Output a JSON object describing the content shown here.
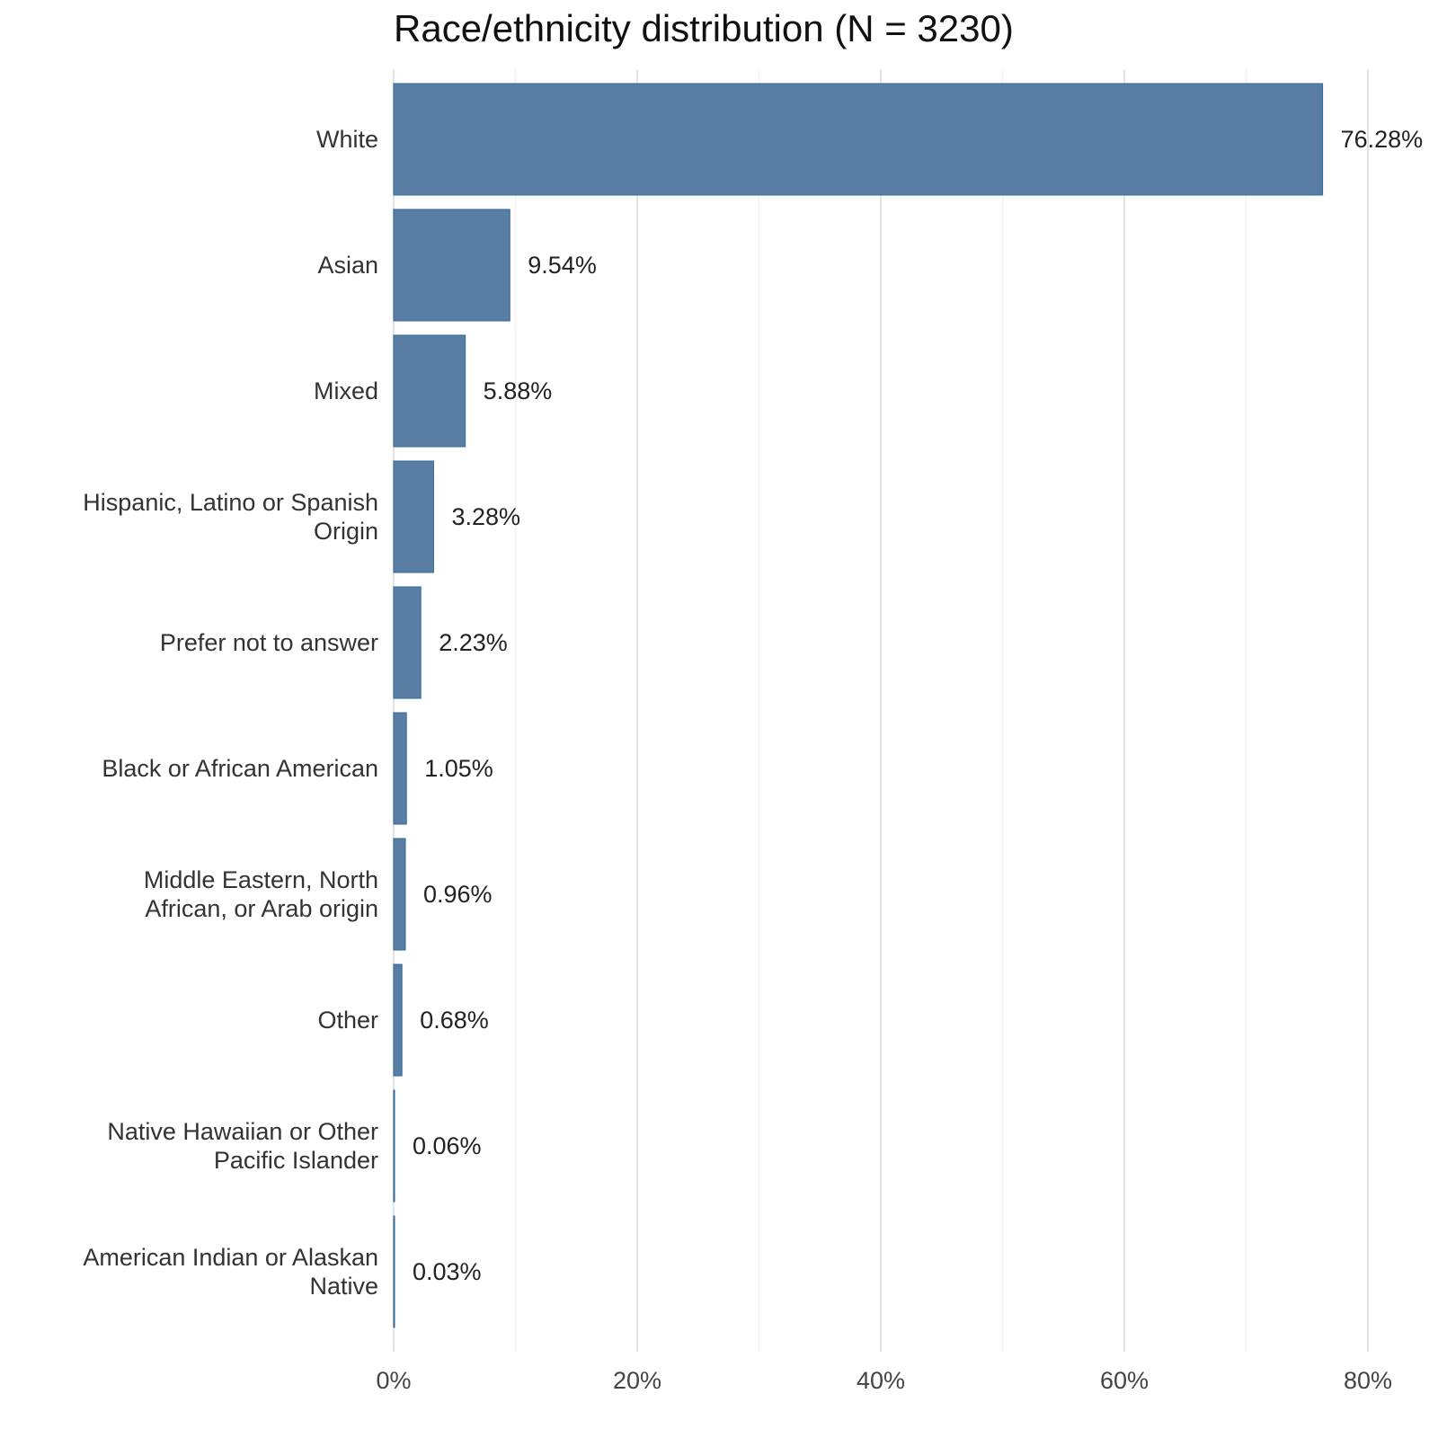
{
  "chart_data": {
    "type": "bar",
    "orientation": "horizontal",
    "title": "Race/ethnicity distribution (N = 3230)",
    "xlabel": "",
    "ylabel": "",
    "categories": [
      [
        "White"
      ],
      [
        "Asian"
      ],
      [
        "Mixed"
      ],
      [
        "Hispanic, Latino or Spanish",
        "Origin"
      ],
      [
        "Prefer not to answer"
      ],
      [
        "Black or African American"
      ],
      [
        "Middle Eastern, North",
        "African, or Arab origin"
      ],
      [
        "Other"
      ],
      [
        "Native Hawaiian or Other",
        "Pacific Islander"
      ],
      [
        "American Indian or Alaskan",
        "Native"
      ]
    ],
    "values": [
      76.28,
      9.54,
      5.88,
      3.28,
      2.23,
      1.05,
      0.96,
      0.68,
      0.06,
      0.03
    ],
    "value_labels": [
      "76.28%",
      "9.54%",
      "5.88%",
      "3.28%",
      "2.23%",
      "1.05%",
      "0.96%",
      "0.68%",
      "0.06%",
      "0.03%"
    ],
    "xlim": [
      0,
      80
    ],
    "xticks": [
      0,
      20,
      40,
      60,
      80
    ],
    "xtick_labels": [
      "0%",
      "20%",
      "40%",
      "60%",
      "80%"
    ],
    "minor_gridlines": [
      10,
      30,
      50,
      70
    ],
    "grid": true,
    "bar_color": "#5a7ea3",
    "bar_edge_color": "#2e6a9e"
  }
}
